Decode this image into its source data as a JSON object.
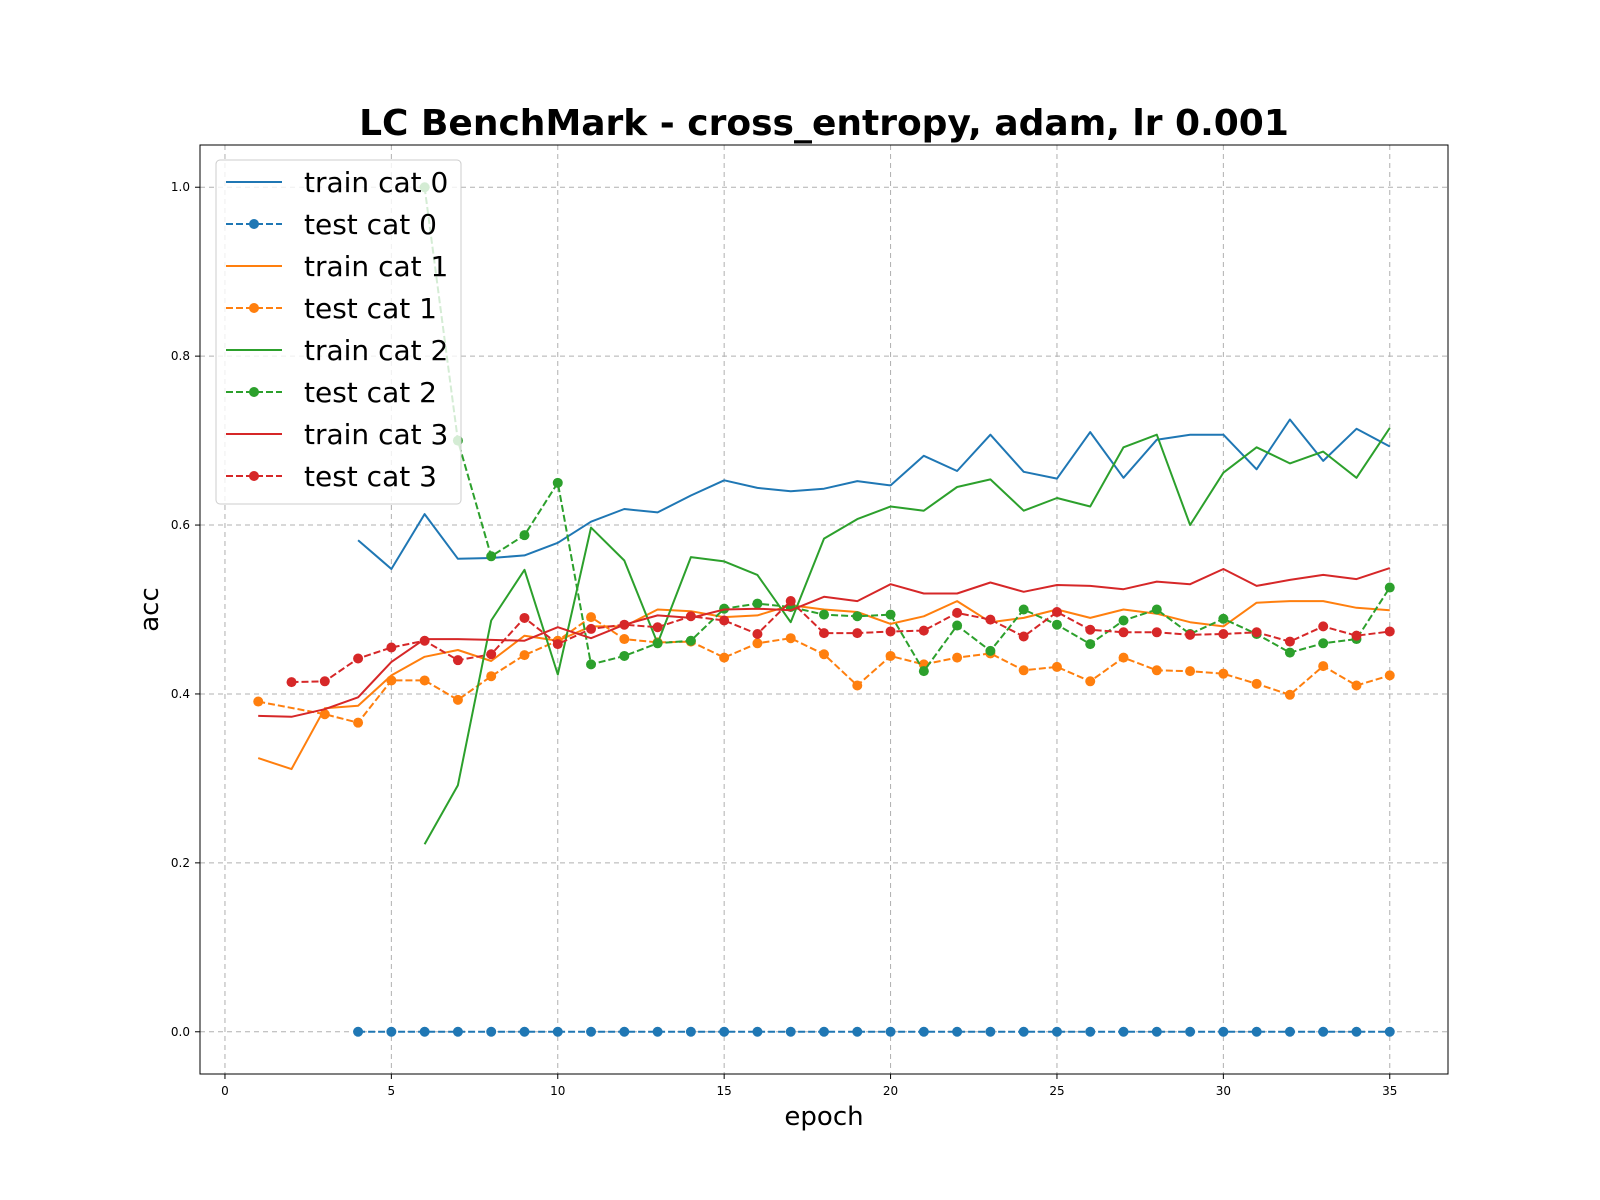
{
  "chart_data": {
    "type": "line",
    "title": "LC BenchMark - cross_entropy, adam, lr 0.001",
    "xlabel": "epoch",
    "ylabel": "acc",
    "xlim": [
      -0.75,
      36.75
    ],
    "ylim": [
      -0.05,
      1.05
    ],
    "xticks": [
      0,
      5,
      10,
      15,
      20,
      25,
      30,
      35
    ],
    "yticks": [
      0.0,
      0.2,
      0.4,
      0.6,
      0.8,
      1.0
    ],
    "xtick_labels": [
      "0",
      "5",
      "10",
      "15",
      "20",
      "25",
      "30",
      "35"
    ],
    "ytick_labels": [
      "0.0",
      "0.2",
      "0.4",
      "0.6",
      "0.8",
      "1.0"
    ],
    "grid": true,
    "legend_position": "top-left",
    "series": [
      {
        "name": "train cat 0",
        "color": "#1f77b4",
        "style": "solid",
        "marker": false,
        "x": [
          4,
          5,
          6,
          7,
          8,
          9,
          10,
          11,
          12,
          13,
          14,
          15,
          16,
          17,
          18,
          19,
          20,
          21,
          22,
          23,
          24,
          25,
          26,
          27,
          28,
          29,
          30,
          31,
          32,
          33,
          34,
          35
        ],
        "y": [
          0.582,
          0.548,
          0.613,
          0.56,
          0.561,
          0.564,
          0.579,
          0.604,
          0.619,
          0.615,
          0.635,
          0.653,
          0.644,
          0.64,
          0.643,
          0.652,
          0.647,
          0.682,
          0.664,
          0.707,
          0.663,
          0.655,
          0.71,
          0.656,
          0.701,
          0.707,
          0.707,
          0.666,
          0.725,
          0.676,
          0.714,
          0.693
        ]
      },
      {
        "name": "test cat 0",
        "color": "#1f77b4",
        "style": "dashed",
        "marker": true,
        "x": [
          4,
          5,
          6,
          7,
          8,
          9,
          10,
          11,
          12,
          13,
          14,
          15,
          16,
          17,
          18,
          19,
          20,
          21,
          22,
          23,
          24,
          25,
          26,
          27,
          28,
          29,
          30,
          31,
          32,
          33,
          34,
          35
        ],
        "y": [
          0,
          0,
          0,
          0,
          0,
          0,
          0,
          0,
          0,
          0,
          0,
          0,
          0,
          0,
          0,
          0,
          0,
          0,
          0,
          0,
          0,
          0,
          0,
          0,
          0,
          0,
          0,
          0,
          0,
          0,
          0,
          0
        ]
      },
      {
        "name": "train cat 1",
        "color": "#ff7f0e",
        "style": "solid",
        "marker": false,
        "x": [
          1,
          2,
          3,
          4,
          5,
          6,
          7,
          8,
          9,
          10,
          11,
          12,
          13,
          14,
          15,
          16,
          17,
          18,
          19,
          20,
          21,
          22,
          23,
          24,
          25,
          26,
          27,
          28,
          29,
          30,
          31,
          32,
          33,
          34,
          35
        ],
        "y": [
          0.324,
          0.311,
          0.383,
          0.386,
          0.422,
          0.444,
          0.452,
          0.439,
          0.469,
          0.463,
          0.48,
          0.48,
          0.5,
          0.498,
          0.491,
          0.493,
          0.505,
          0.5,
          0.497,
          0.483,
          0.492,
          0.51,
          0.485,
          0.49,
          0.5,
          0.49,
          0.5,
          0.495,
          0.485,
          0.48,
          0.508,
          0.51,
          0.51,
          0.502,
          0.499
        ]
      },
      {
        "name": "test cat 1",
        "color": "#ff7f0e",
        "style": "dashed",
        "marker": true,
        "x": [
          1,
          3,
          4,
          5,
          6,
          7,
          8,
          9,
          10,
          11,
          12,
          13,
          14,
          15,
          16,
          17,
          18,
          19,
          20,
          21,
          22,
          23,
          24,
          25,
          26,
          27,
          28,
          29,
          30,
          31,
          32,
          33,
          34,
          35
        ],
        "y": [
          0.391,
          0.376,
          0.366,
          0.416,
          0.416,
          0.393,
          0.421,
          0.446,
          0.463,
          0.491,
          0.465,
          0.461,
          0.462,
          0.443,
          0.46,
          0.466,
          0.447,
          0.41,
          0.445,
          0.435,
          0.443,
          0.448,
          0.428,
          0.432,
          0.415,
          0.443,
          0.428,
          0.427,
          0.424,
          0.412,
          0.399,
          0.433,
          0.41,
          0.422
        ]
      },
      {
        "name": "train cat 2",
        "color": "#2ca02c",
        "style": "solid",
        "marker": false,
        "x": [
          6,
          7,
          8,
          9,
          10,
          11,
          12,
          13,
          14,
          15,
          16,
          17,
          18,
          19,
          20,
          21,
          22,
          23,
          24,
          25,
          26,
          27,
          28,
          29,
          30,
          31,
          32,
          33,
          34,
          35
        ],
        "y": [
          0.222,
          0.292,
          0.487,
          0.547,
          0.423,
          0.597,
          0.558,
          0.46,
          0.562,
          0.557,
          0.541,
          0.485,
          0.584,
          0.607,
          0.622,
          0.617,
          0.645,
          0.654,
          0.617,
          0.632,
          0.622,
          0.692,
          0.707,
          0.6,
          0.662,
          0.692,
          0.673,
          0.687,
          0.656,
          0.715
        ]
      },
      {
        "name": "test cat 2",
        "color": "#2ca02c",
        "style": "dashed",
        "marker": true,
        "x": [
          6,
          7,
          8,
          9,
          10,
          11,
          12,
          13,
          14,
          15,
          16,
          17,
          18,
          19,
          20,
          21,
          22,
          23,
          24,
          25,
          26,
          27,
          28,
          29,
          30,
          31,
          32,
          33,
          34,
          35
        ],
        "y": [
          1.0,
          0.7,
          0.563,
          0.588,
          0.65,
          0.435,
          0.445,
          0.46,
          0.463,
          0.501,
          0.507,
          0.503,
          0.494,
          0.492,
          0.494,
          0.427,
          0.481,
          0.451,
          0.5,
          0.482,
          0.459,
          0.487,
          0.5,
          0.471,
          0.489,
          0.471,
          0.449,
          0.46,
          0.465,
          0.526
        ]
      },
      {
        "name": "train cat 3",
        "color": "#d62728",
        "style": "solid",
        "marker": false,
        "x": [
          1,
          2,
          3,
          4,
          5,
          6,
          7,
          8,
          9,
          10,
          11,
          12,
          13,
          14,
          15,
          16,
          17,
          18,
          19,
          20,
          21,
          22,
          23,
          24,
          25,
          26,
          27,
          28,
          29,
          30,
          31,
          32,
          33,
          34,
          35
        ],
        "y": [
          0.374,
          0.373,
          0.382,
          0.396,
          0.438,
          0.465,
          0.465,
          0.464,
          0.463,
          0.479,
          0.466,
          0.482,
          0.493,
          0.49,
          0.5,
          0.501,
          0.499,
          0.515,
          0.51,
          0.53,
          0.519,
          0.519,
          0.532,
          0.521,
          0.529,
          0.528,
          0.524,
          0.533,
          0.53,
          0.548,
          0.528,
          0.535,
          0.541,
          0.536,
          0.549
        ]
      },
      {
        "name": "test cat 3",
        "color": "#d62728",
        "style": "dashed",
        "marker": true,
        "x": [
          2,
          3,
          4,
          5,
          6,
          7,
          8,
          9,
          10,
          11,
          12,
          13,
          14,
          15,
          16,
          17,
          18,
          19,
          20,
          21,
          22,
          23,
          24,
          25,
          26,
          27,
          28,
          29,
          30,
          31,
          32,
          33,
          34,
          35
        ],
        "y": [
          0.414,
          0.415,
          0.442,
          0.455,
          0.463,
          0.44,
          0.447,
          0.49,
          0.459,
          0.477,
          0.482,
          0.479,
          0.492,
          0.487,
          0.471,
          0.51,
          0.472,
          0.472,
          0.474,
          0.475,
          0.496,
          0.488,
          0.468,
          0.497,
          0.476,
          0.473,
          0.473,
          0.47,
          0.471,
          0.473,
          0.462,
          0.48,
          0.469,
          0.474
        ]
      }
    ]
  }
}
